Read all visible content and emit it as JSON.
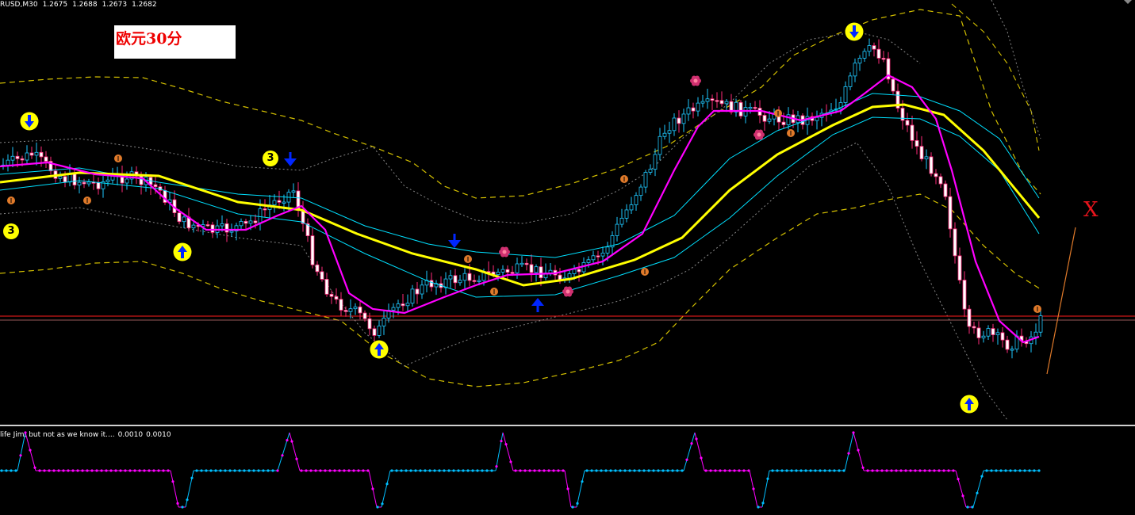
{
  "header": {
    "symbol": "RUSD,M30",
    "open": "1.2675",
    "high": "1.2688",
    "low": "1.2673",
    "close": "1.2682"
  },
  "annotation_label": "欧元30分",
  "x_label": "X",
  "wave_labels": [
    "3",
    "3"
  ],
  "indicator": {
    "name": "life Jim, but not as we know it....",
    "value1": "0.0010",
    "value2": "0.0010"
  },
  "colors": {
    "background": "#000000",
    "bull_candle": "#1ec8ff",
    "bear_candle": "#ffffff",
    "bear_candle_edge": "#ff2a7a",
    "ma_yellow": "#ffff00",
    "ma_magenta": "#ff00ff",
    "ma_cyan": "#00e0ff",
    "envelope_dash": "#d4c000",
    "price_line": "#ff1c1c",
    "indicator_up": "#00bfff",
    "indicator_down": "#ff00ff",
    "arrow_blue": "#0026ff",
    "circle_yellow": "#ffff00",
    "fractal_orange": "#e07a2a"
  },
  "icons": [
    "down-arrow-icon",
    "up-arrow-icon",
    "fractal-dot-icon",
    "flower-icon",
    "down-arrow-circle-icon",
    "up-arrow-circle-icon"
  ]
}
